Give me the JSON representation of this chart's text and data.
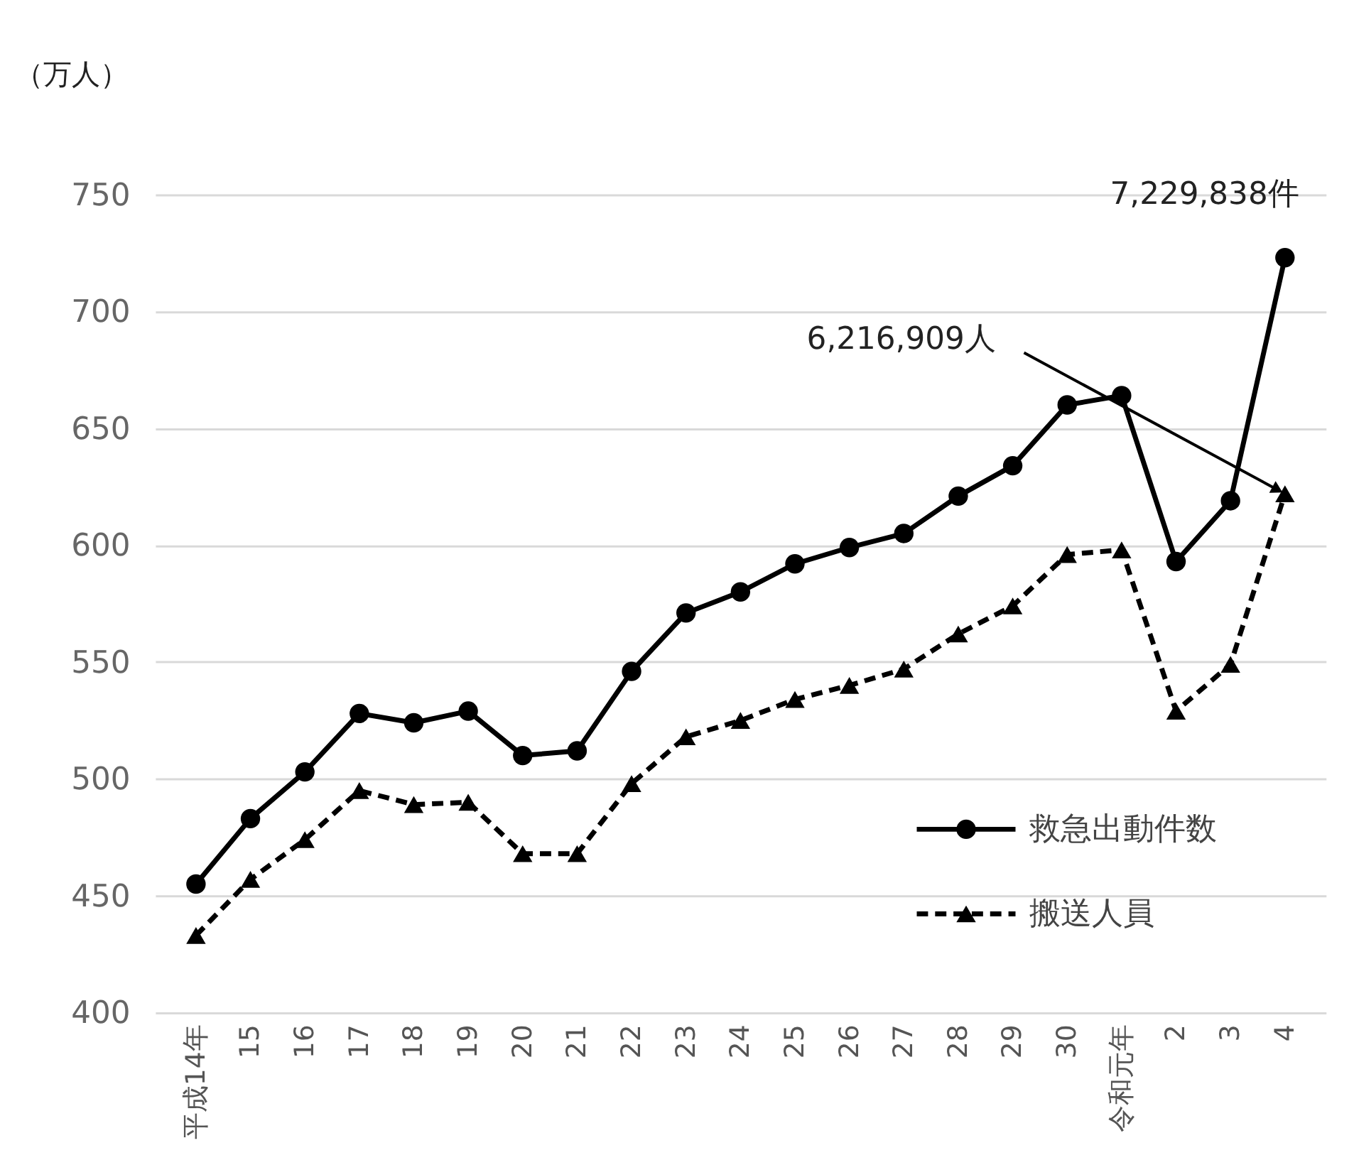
{
  "chart_data": {
    "type": "line",
    "ylabel": "（万人）",
    "categories": [
      "平成14年",
      "15",
      "16",
      "17",
      "18",
      "19",
      "20",
      "21",
      "22",
      "23",
      "24",
      "25",
      "26",
      "27",
      "28",
      "29",
      "30",
      "令和元年",
      "2",
      "3",
      "4"
    ],
    "series": [
      {
        "name": "救急出動件数",
        "color": "#000000",
        "marker": "circle",
        "line_style": "solid",
        "values": [
          455,
          483,
          503,
          528,
          524,
          529,
          510,
          512,
          546,
          571,
          580,
          592,
          599,
          605,
          621,
          634,
          660,
          664,
          593,
          619,
          723
        ]
      },
      {
        "name": "搬送人員",
        "color": "#000000",
        "marker": "triangle",
        "line_style": "dashed",
        "values": [
          433,
          457,
          474,
          495,
          489,
          490,
          468,
          468,
          498,
          518,
          525,
          534,
          540,
          547,
          562,
          574,
          596,
          598,
          529,
          549,
          622
        ]
      }
    ],
    "ylim": [
      400,
      750
    ],
    "yticks": [
      400,
      450,
      500,
      550,
      600,
      650,
      700,
      750
    ],
    "grid": "y",
    "legend": "bottom right",
    "annotations": [
      {
        "text": "7,229,838件",
        "x": "4",
        "y": 723
      },
      {
        "text": "6,216,909人",
        "x": "4",
        "y": 622
      }
    ]
  }
}
